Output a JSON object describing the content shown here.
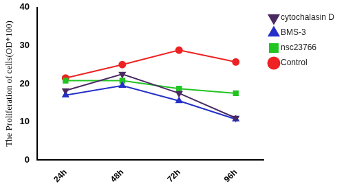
{
  "chart_data": {
    "type": "line",
    "y_label": "The Proliferation of cells(OD*100)",
    "categories": [
      "24h",
      "48h",
      "72h",
      "96h"
    ],
    "series": [
      {
        "name": "cytochalasin D",
        "color": "#4a2a63",
        "marker": "triangle_down",
        "values": [
          18.2,
          22.5,
          17.5,
          11.0
        ]
      },
      {
        "name": "BMS-3",
        "color": "#2430c8",
        "marker": "triangle",
        "values": [
          17.0,
          19.5,
          15.5,
          10.7
        ]
      },
      {
        "name": "nsc23766",
        "color": "#22c422",
        "marker": "square",
        "values": [
          20.8,
          20.8,
          18.7,
          17.5
        ]
      },
      {
        "name": "Control",
        "color": "#ee2222",
        "marker": "circle",
        "values": [
          21.5,
          25.0,
          28.8,
          25.7
        ]
      }
    ],
    "ylim": [
      0,
      40
    ],
    "yticks": [
      0,
      10,
      20,
      30,
      40
    ],
    "grid": false,
    "legend": "right"
  }
}
